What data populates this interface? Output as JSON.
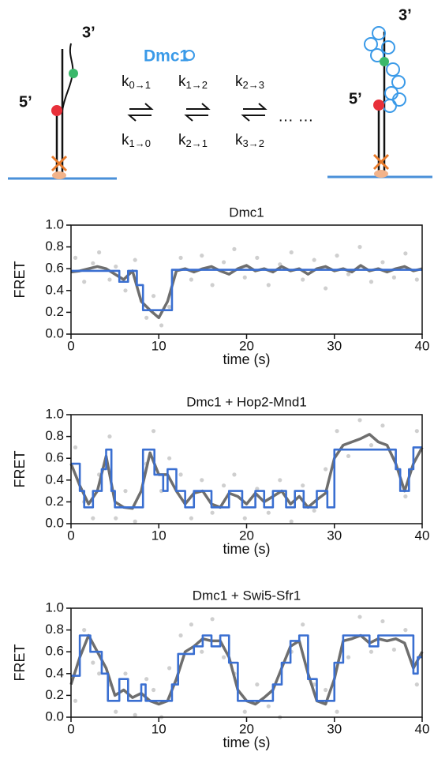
{
  "schematic": {
    "three_prime_left": "3’",
    "five_prime_left": "5’",
    "protein": "Dmc1",
    "rates_forward": [
      {
        "symbol": "k",
        "subscript": "0→1"
      },
      {
        "symbol": "k",
        "subscript": "1→2"
      },
      {
        "symbol": "k",
        "subscript": "2→3"
      }
    ],
    "rates_backward": [
      {
        "symbol": "k",
        "subscript": "1→0"
      },
      {
        "symbol": "k",
        "subscript": "2→1"
      },
      {
        "symbol": "k",
        "subscript": "3→2"
      }
    ],
    "ellipsis": "… …",
    "three_prime_right": "3’",
    "five_prime_right": "5’"
  },
  "chart_data": [
    {
      "type": "line",
      "title": "Dmc1",
      "xlabel": "time (s)",
      "ylabel": "FRET",
      "xlim": [
        0,
        40
      ],
      "xticks": [
        0,
        10,
        20,
        30,
        40
      ],
      "ylim": [
        0,
        1
      ],
      "yticks": [
        {
          "value": 0,
          "label": "0.0"
        },
        {
          "value": 0.2,
          "label": "0.2"
        },
        {
          "value": 0.4,
          "label": "0.4"
        },
        {
          "value": 0.6,
          "label": "0.6"
        },
        {
          "value": 0.8,
          "label": "0.8"
        },
        {
          "value": 1,
          "label": "1.0"
        }
      ],
      "series": [
        {
          "type": "scatter",
          "color": "#cfcfcf",
          "x": [
            0.5,
            1.5,
            2.5,
            3.2,
            4.4,
            5.1,
            6.2,
            7.3,
            8.6,
            9.4,
            10.3,
            11.2,
            12.5,
            13.7,
            14.9,
            16.1,
            17.4,
            18.6,
            19.8,
            21.2,
            22.5,
            23.8,
            25.1,
            26.4,
            27.7,
            29.0,
            30.3,
            31.6,
            32.9,
            34.2,
            35.5,
            36.8,
            38.1,
            39.4
          ],
          "values": [
            0.7,
            0.48,
            0.65,
            0.75,
            0.5,
            0.62,
            0.4,
            0.68,
            0.15,
            0.35,
            0.08,
            0.25,
            0.7,
            0.5,
            0.72,
            0.45,
            0.66,
            0.78,
            0.52,
            0.7,
            0.45,
            0.64,
            0.75,
            0.5,
            0.68,
            0.42,
            0.72,
            0.55,
            0.8,
            0.48,
            0.66,
            0.52,
            0.74,
            0.5
          ]
        },
        {
          "type": "line",
          "color": "#6e6e6e",
          "x": [
            0,
            1,
            2,
            3,
            4,
            5,
            6,
            7,
            8,
            9,
            10,
            11,
            12,
            13,
            14,
            15,
            16,
            17,
            18,
            19,
            20,
            21,
            22,
            23,
            24,
            25,
            26,
            27,
            28,
            29,
            30,
            31,
            32,
            33,
            34,
            35,
            36,
            37,
            38,
            39,
            40
          ],
          "values": [
            0.57,
            0.58,
            0.6,
            0.62,
            0.6,
            0.55,
            0.5,
            0.58,
            0.3,
            0.22,
            0.15,
            0.3,
            0.58,
            0.6,
            0.57,
            0.6,
            0.62,
            0.58,
            0.55,
            0.6,
            0.63,
            0.58,
            0.6,
            0.57,
            0.62,
            0.58,
            0.6,
            0.55,
            0.6,
            0.62,
            0.58,
            0.6,
            0.57,
            0.63,
            0.58,
            0.6,
            0.57,
            0.6,
            0.62,
            0.58,
            0.6
          ]
        },
        {
          "type": "line",
          "color": "#3a6fd1",
          "x": [
            0,
            5.5,
            5.5,
            6.5,
            6.5,
            7.5,
            7.5,
            8.2,
            8.2,
            11.5,
            11.5,
            40
          ],
          "values": [
            0.58,
            0.58,
            0.48,
            0.48,
            0.58,
            0.58,
            0.45,
            0.45,
            0.22,
            0.22,
            0.59,
            0.59
          ]
        }
      ]
    },
    {
      "type": "line",
      "title": "Dmc1 + Hop2-Mnd1",
      "xlabel": "time (s)",
      "ylabel": "FRET",
      "xlim": [
        0,
        40
      ],
      "xticks": [
        0,
        10,
        20,
        30,
        40
      ],
      "ylim": [
        0,
        1
      ],
      "yticks": [
        {
          "value": 0,
          "label": "0.0"
        },
        {
          "value": 0.2,
          "label": "0.2"
        },
        {
          "value": 0.4,
          "label": "0.4"
        },
        {
          "value": 0.6,
          "label": "0.6"
        },
        {
          "value": 0.8,
          "label": "0.8"
        },
        {
          "value": 1,
          "label": "1.0"
        }
      ],
      "series": [
        {
          "type": "scatter",
          "color": "#cfcfcf",
          "x": [
            0.5,
            1.5,
            2.5,
            3.2,
            4.4,
            5.1,
            6.2,
            7.3,
            8.6,
            9.4,
            10.3,
            11.2,
            12.5,
            13.7,
            14.9,
            16.1,
            17.4,
            18.6,
            19.8,
            21.2,
            22.5,
            23.8,
            25.1,
            26.4,
            27.7,
            29.0,
            30.3,
            31.6,
            32.9,
            34.2,
            35.5,
            36.8,
            38.1,
            39.4
          ],
          "values": [
            0.7,
            0.2,
            0.05,
            0.45,
            0.8,
            0.05,
            0.3,
            0.02,
            0.55,
            0.85,
            0.3,
            0.6,
            0.45,
            0.05,
            0.4,
            0.1,
            0.35,
            0.45,
            0.05,
            0.32,
            0.1,
            0.4,
            0.02,
            0.35,
            0.12,
            0.5,
            0.85,
            0.62,
            0.95,
            0.72,
            0.9,
            0.6,
            0.25,
            0.85
          ]
        },
        {
          "type": "line",
          "color": "#6e6e6e",
          "x": [
            0,
            1,
            2,
            3,
            4,
            5,
            6,
            7,
            8,
            9,
            10,
            11,
            12,
            13,
            14,
            15,
            16,
            17,
            18,
            19,
            20,
            21,
            22,
            23,
            24,
            25,
            26,
            27,
            28,
            29,
            30,
            31,
            32,
            33,
            34,
            35,
            36,
            37,
            38,
            39,
            40
          ],
          "values": [
            0.55,
            0.35,
            0.18,
            0.3,
            0.62,
            0.2,
            0.15,
            0.14,
            0.3,
            0.65,
            0.45,
            0.45,
            0.3,
            0.18,
            0.28,
            0.3,
            0.18,
            0.15,
            0.28,
            0.25,
            0.18,
            0.28,
            0.2,
            0.25,
            0.3,
            0.18,
            0.25,
            0.15,
            0.22,
            0.28,
            0.6,
            0.72,
            0.75,
            0.78,
            0.82,
            0.75,
            0.72,
            0.55,
            0.3,
            0.55,
            0.7
          ]
        },
        {
          "type": "line",
          "color": "#3a6fd1",
          "x": [
            0,
            1,
            1,
            1.5,
            1.5,
            2.5,
            2.5,
            3.5,
            3.5,
            4,
            4,
            4.6,
            4.6,
            5,
            5,
            8.2,
            8.2,
            9.5,
            9.5,
            10.5,
            10.5,
            11,
            11,
            12,
            12,
            13,
            13,
            14,
            14,
            16,
            16,
            18,
            18,
            19.5,
            19.5,
            21,
            21,
            22,
            22,
            23,
            23,
            24.5,
            24.5,
            25.5,
            25.5,
            26.5,
            26.5,
            28,
            28,
            29.2,
            29.2,
            30,
            30,
            37,
            37,
            37.5,
            37.5,
            38.5,
            38.5,
            39,
            39,
            40
          ],
          "values": [
            0.55,
            0.55,
            0.3,
            0.3,
            0.15,
            0.15,
            0.3,
            0.3,
            0.5,
            0.5,
            0.68,
            0.68,
            0.3,
            0.3,
            0.15,
            0.15,
            0.68,
            0.68,
            0.45,
            0.45,
            0.3,
            0.3,
            0.5,
            0.5,
            0.3,
            0.3,
            0.15,
            0.15,
            0.3,
            0.3,
            0.15,
            0.15,
            0.3,
            0.3,
            0.15,
            0.15,
            0.3,
            0.3,
            0.15,
            0.15,
            0.3,
            0.3,
            0.15,
            0.15,
            0.3,
            0.3,
            0.15,
            0.15,
            0.3,
            0.3,
            0.15,
            0.15,
            0.68,
            0.68,
            0.5,
            0.5,
            0.3,
            0.3,
            0.5,
            0.5,
            0.7,
            0.7
          ]
        }
      ]
    },
    {
      "type": "line",
      "title": "Dmc1 + Swi5-Sfr1",
      "xlabel": "time (s)",
      "ylabel": "FRET",
      "xlim": [
        0,
        40
      ],
      "xticks": [
        0,
        10,
        20,
        30,
        40
      ],
      "ylim": [
        0,
        1
      ],
      "yticks": [
        {
          "value": 0,
          "label": "0.0"
        },
        {
          "value": 0.2,
          "label": "0.2"
        },
        {
          "value": 0.4,
          "label": "0.4"
        },
        {
          "value": 0.6,
          "label": "0.6"
        },
        {
          "value": 0.8,
          "label": "0.8"
        },
        {
          "value": 1,
          "label": "1.0"
        }
      ],
      "series": [
        {
          "type": "scatter",
          "color": "#cfcfcf",
          "x": [
            0.5,
            1.5,
            2.5,
            3.2,
            4.4,
            5.1,
            6.2,
            7.3,
            8.6,
            9.4,
            10.3,
            11.2,
            12.5,
            13.7,
            14.9,
            16.1,
            17.4,
            18.6,
            19.8,
            21.2,
            22.5,
            23.8,
            25.1,
            26.4,
            27.7,
            29.0,
            30.3,
            31.6,
            32.9,
            34.2,
            35.5,
            36.8,
            38.1,
            39.4
          ],
          "values": [
            0.15,
            0.8,
            0.5,
            0.4,
            0.3,
            0.05,
            0.4,
            0.02,
            0.35,
            0.25,
            0.0,
            0.45,
            0.75,
            0.85,
            0.6,
            0.9,
            0.55,
            0.4,
            0.05,
            0.3,
            0.1,
            0.0,
            0.6,
            0.85,
            0.3,
            0.25,
            0.05,
            0.55,
            0.92,
            0.6,
            0.88,
            0.62,
            0.8,
            0.3
          ]
        },
        {
          "type": "line",
          "color": "#6e6e6e",
          "x": [
            0,
            1,
            2,
            3,
            4,
            5,
            6,
            7,
            8,
            9,
            10,
            11,
            12,
            13,
            14,
            15,
            16,
            17,
            18,
            19,
            20,
            21,
            22,
            23,
            24,
            25,
            26,
            27,
            28,
            29,
            30,
            31,
            32,
            33,
            34,
            35,
            36,
            37,
            38,
            39,
            40
          ],
          "values": [
            0.3,
            0.55,
            0.75,
            0.6,
            0.45,
            0.2,
            0.25,
            0.18,
            0.22,
            0.15,
            0.12,
            0.15,
            0.35,
            0.6,
            0.65,
            0.72,
            0.7,
            0.7,
            0.55,
            0.25,
            0.15,
            0.12,
            0.18,
            0.25,
            0.45,
            0.65,
            0.7,
            0.4,
            0.15,
            0.12,
            0.35,
            0.7,
            0.72,
            0.75,
            0.68,
            0.72,
            0.7,
            0.72,
            0.68,
            0.45,
            0.6
          ]
        },
        {
          "type": "line",
          "color": "#3a6fd1",
          "x": [
            0,
            1,
            1,
            2.2,
            2.2,
            3.5,
            3.5,
            4.2,
            4.2,
            5.5,
            5.5,
            6.5,
            6.5,
            8,
            8,
            8.5,
            8.5,
            11.5,
            11.5,
            12.2,
            12.2,
            14,
            14,
            15,
            15,
            16,
            16,
            17,
            17,
            18,
            18,
            19,
            19,
            23,
            23,
            24,
            24,
            25,
            25,
            26,
            26,
            27,
            27,
            28,
            28,
            30,
            30,
            31,
            31,
            34,
            34,
            35,
            35,
            39,
            39,
            39.5,
            39.5,
            40
          ],
          "values": [
            0.38,
            0.38,
            0.75,
            0.75,
            0.6,
            0.6,
            0.4,
            0.4,
            0.15,
            0.15,
            0.35,
            0.35,
            0.15,
            0.15,
            0.3,
            0.3,
            0.15,
            0.15,
            0.3,
            0.3,
            0.58,
            0.58,
            0.65,
            0.65,
            0.75,
            0.75,
            0.65,
            0.65,
            0.75,
            0.75,
            0.5,
            0.5,
            0.15,
            0.15,
            0.3,
            0.3,
            0.5,
            0.5,
            0.7,
            0.7,
            0.75,
            0.75,
            0.35,
            0.35,
            0.15,
            0.15,
            0.5,
            0.5,
            0.75,
            0.75,
            0.65,
            0.65,
            0.75,
            0.75,
            0.4,
            0.4,
            0.55,
            0.55
          ]
        }
      ]
    }
  ]
}
